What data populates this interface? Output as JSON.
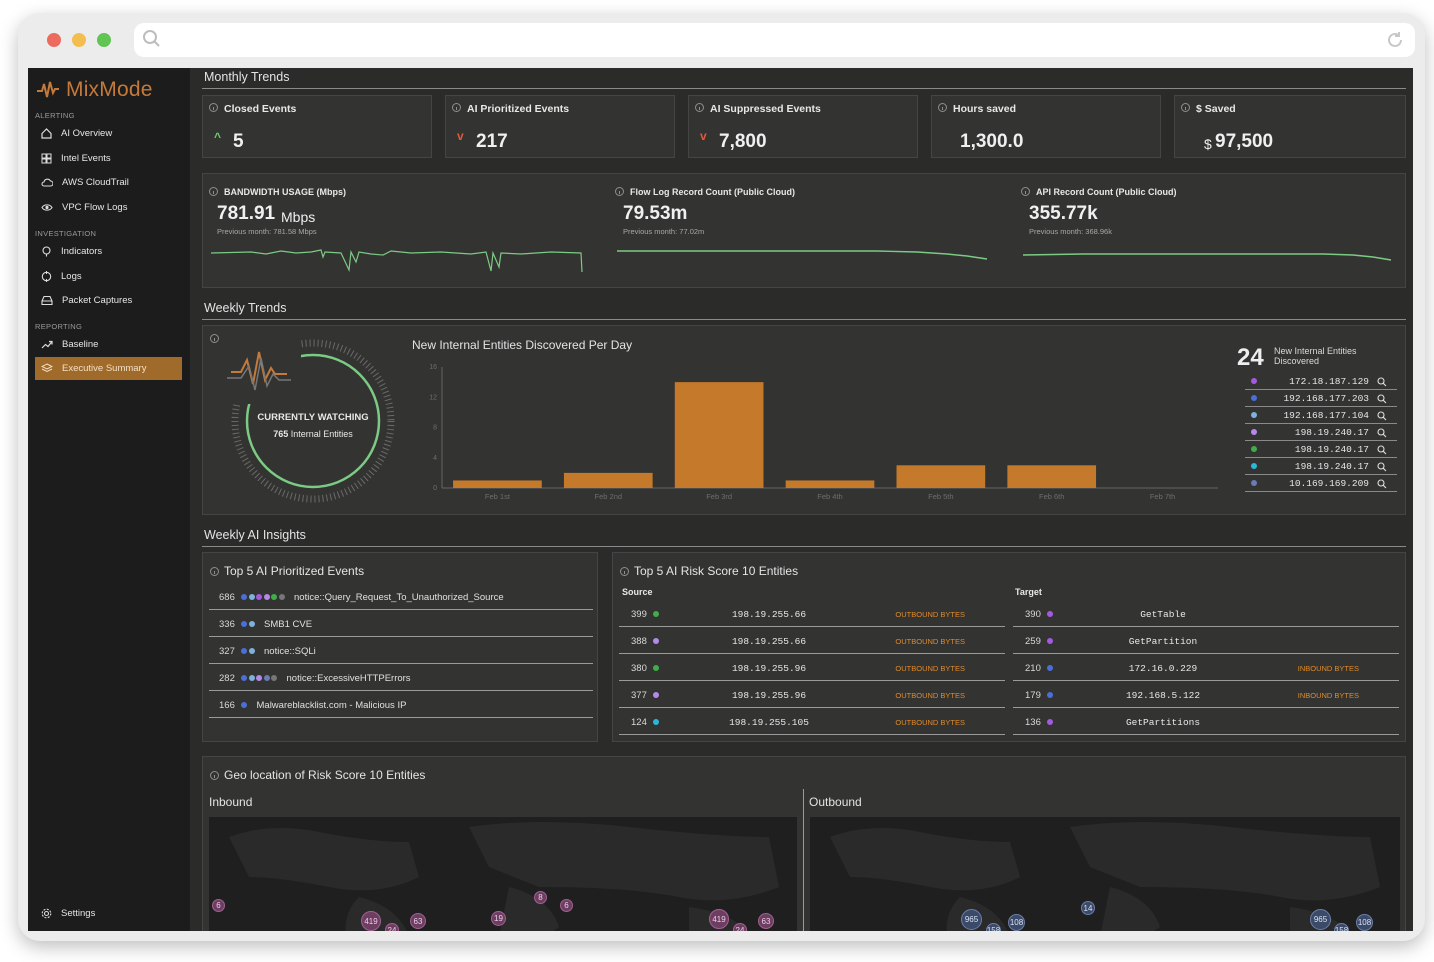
{
  "browser": {
    "search_icon": "search-icon",
    "reload_icon": "reload-icon"
  },
  "sidebar": {
    "brand": "MixMode",
    "sections": [
      {
        "title": "ALERTING",
        "items": [
          "AI Overview",
          "Intel Events",
          "AWS CloudTrail",
          "VPC Flow Logs"
        ]
      },
      {
        "title": "INVESTIGATION",
        "items": [
          "Indicators",
          "Logs",
          "Packet Captures"
        ]
      },
      {
        "title": "REPORTING",
        "items": [
          "Baseline",
          "Executive Summary"
        ]
      }
    ],
    "active_item": "Executive Summary",
    "settings": "Settings"
  },
  "monthly": {
    "title": "Monthly Trends",
    "kpis": [
      {
        "label": "Closed Events",
        "value": "5",
        "trend": "up"
      },
      {
        "label": "AI Prioritized Events",
        "value": "217",
        "trend": "down"
      },
      {
        "label": "AI Suppressed Events",
        "value": "7,800",
        "trend": "down"
      },
      {
        "label": "Hours saved",
        "value": "1,300.0",
        "trend": "none"
      },
      {
        "label": "$ Saved",
        "prefix": "$",
        "value": "97,500",
        "trend": "none"
      }
    ],
    "metrics": [
      {
        "label": "BANDWIDTH USAGE (Mbps)",
        "value": "781.91",
        "unit": "Mbps",
        "previous": "Previous month: 781.58 Mbps"
      },
      {
        "label": "Flow Log Record Count (Public Cloud)",
        "value": "79.53m",
        "unit": "",
        "previous": "Previous month: 77.02m"
      },
      {
        "label": "API Record Count (Public Cloud)",
        "value": "355.77k",
        "unit": "",
        "previous": "Previous month: 368.96k"
      }
    ]
  },
  "weekly": {
    "title": "Weekly Trends",
    "watching": {
      "heading": "CURRENTLY WATCHING",
      "count": "765",
      "suffix": "Internal Entities"
    },
    "chart_title": "New Internal Entities Discovered Per Day",
    "new_count": "24",
    "new_label": "New Internal Entities Discovered",
    "entities": [
      {
        "ip": "172.18.187.129",
        "color": "#a35ae0"
      },
      {
        "ip": "192.168.177.203",
        "color": "#4a6fd8"
      },
      {
        "ip": "192.168.177.104",
        "color": "#7fb2d8"
      },
      {
        "ip": "198.19.240.17",
        "color": "#b48ae8"
      },
      {
        "ip": "198.19.240.17",
        "color": "#3fae4a"
      },
      {
        "ip": "198.19.240.17",
        "color": "#2ab8d8"
      },
      {
        "ip": "10.169.169.209",
        "color": "#6a7bb8"
      }
    ]
  },
  "chart_data": {
    "type": "bar",
    "title": "New Internal Entities Discovered Per Day",
    "categories": [
      "Feb 1st",
      "Feb 2nd",
      "Feb 3rd",
      "Feb 4th",
      "Feb 5th",
      "Feb 6th",
      "Feb 7th"
    ],
    "values": [
      1,
      2,
      14,
      1,
      3,
      3,
      0
    ],
    "ylim": [
      0,
      16
    ],
    "yticks": [
      "0",
      "4",
      "8",
      "12",
      "16"
    ],
    "color": "#c47a2a"
  },
  "insights": {
    "title": "Weekly AI Insights",
    "top5_title": "Top 5 AI Prioritized Events",
    "top5": [
      {
        "count": "686",
        "label": "notice::Query_Request_To_Unauthorized_Source",
        "dots": [
          "#4a6fd8",
          "#7fb2d8",
          "#a35ae0",
          "#b48ae8",
          "#3fae4a",
          "#777777"
        ]
      },
      {
        "count": "336",
        "label": "SMB1 CVE",
        "dots": [
          "#4a6fd8",
          "#7fb2d8"
        ]
      },
      {
        "count": "327",
        "label": "notice::SQLi",
        "dots": [
          "#4a6fd8",
          "#7fb2d8"
        ]
      },
      {
        "count": "282",
        "label": "notice::ExcessiveHTTPErrors",
        "dots": [
          "#4a6fd8",
          "#7fb2d8",
          "#b48ae8",
          "#6a7bb8",
          "#777777"
        ]
      },
      {
        "count": "166",
        "label": "Malwareblacklist.com - Malicious IP",
        "dots": [
          "#4a6fd8"
        ]
      }
    ],
    "risk_title": "Top 5 AI Risk Score 10 Entities",
    "source_header": "Source",
    "target_header": "Target",
    "source_rows": [
      {
        "count": "399",
        "entity": "198.19.255.66",
        "tag": "OUTBOUND BYTES",
        "color": "#3fae4a"
      },
      {
        "count": "388",
        "entity": "198.19.255.66",
        "tag": "OUTBOUND BYTES",
        "color": "#b48ae8"
      },
      {
        "count": "380",
        "entity": "198.19.255.96",
        "tag": "OUTBOUND BYTES",
        "color": "#3fae4a"
      },
      {
        "count": "377",
        "entity": "198.19.255.96",
        "tag": "OUTBOUND BYTES",
        "color": "#b48ae8"
      },
      {
        "count": "124",
        "entity": "198.19.255.105",
        "tag": "OUTBOUND BYTES",
        "color": "#2ab8d8"
      }
    ],
    "target_rows": [
      {
        "count": "390",
        "entity": "GetTable",
        "tag": "",
        "color": "#a35ae0"
      },
      {
        "count": "259",
        "entity": "GetPartition",
        "tag": "",
        "color": "#a35ae0"
      },
      {
        "count": "210",
        "entity": "172.16.0.229",
        "tag": "INBOUND BYTES",
        "color": "#4a6fd8"
      },
      {
        "count": "179",
        "entity": "192.168.5.122",
        "tag": "INBOUND BYTES",
        "color": "#4a6fd8"
      },
      {
        "count": "136",
        "entity": "GetPartitions",
        "tag": "",
        "color": "#a35ae0"
      }
    ]
  },
  "geo": {
    "title": "Geo location of Risk Score 10 Entities",
    "inbound_label": "Inbound",
    "outbound_label": "Outbound",
    "inbound_bubbles": [
      "6",
      "419",
      "24",
      "63",
      "19",
      "8",
      "6",
      "419",
      "24",
      "63"
    ],
    "outbound_bubbles": [
      "965",
      "158",
      "108",
      "14",
      "965",
      "158",
      "108"
    ]
  }
}
